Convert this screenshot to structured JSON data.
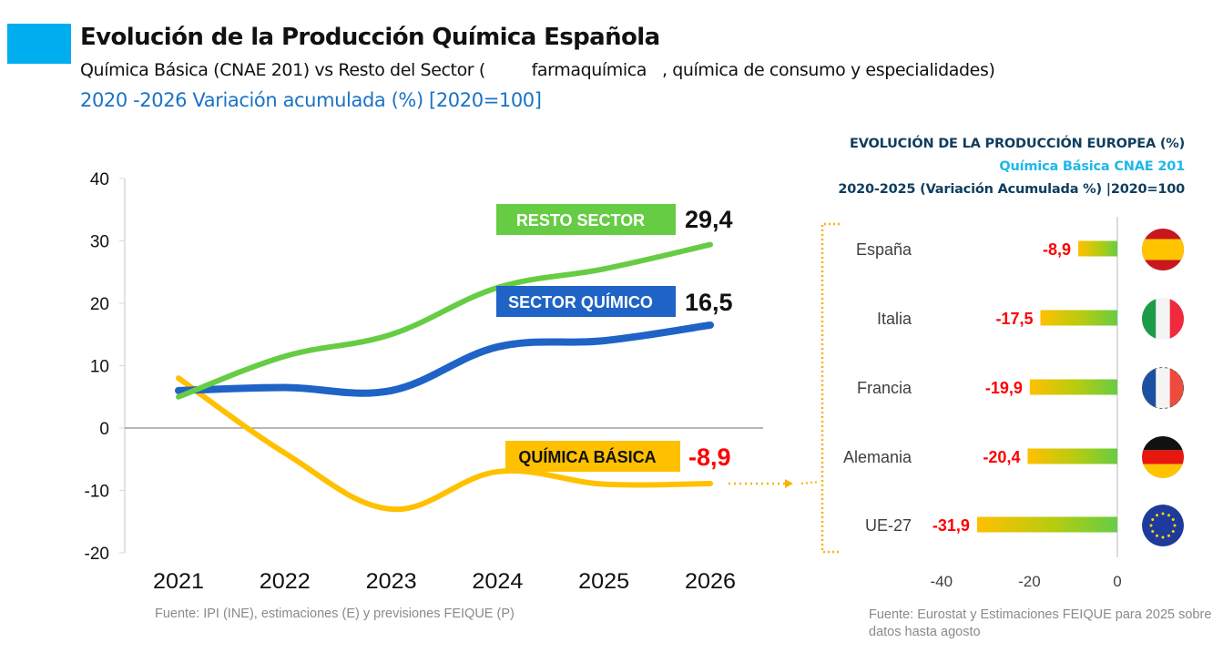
{
  "header": {
    "title": "Evolución de la Producción Química Española",
    "subtitle": "Química Básica (CNAE 201) vs Resto del Sector (         farmaquímica   , química de consumo y especialidades)",
    "subtitle2": "2020 -2026 Variación acumulada (%) [2020=100]",
    "accent_color": "#00ADEF"
  },
  "chart_data": [
    {
      "type": "line",
      "title": "Evolución de la Producción Química Española",
      "subtitle": "2020 -2026 Variación acumulada (%) [2020=100]",
      "xlabel": "",
      "ylabel": "",
      "categories": [
        "2021",
        "2022",
        "2023",
        "2024",
        "2025",
        "2026"
      ],
      "yticks": [
        "40",
        "30",
        "20",
        "10",
        "0",
        "-10",
        "-20"
      ],
      "ytick_values": [
        40,
        30,
        20,
        10,
        0,
        -10,
        -20
      ],
      "ylim": [
        -20,
        40
      ],
      "grid": false,
      "series": [
        {
          "name": "RESTO SECTOR",
          "label": "RESTO SECTOR",
          "end_label": "29,4",
          "color": "#66CC44",
          "label_text_color": "#ffffff",
          "end_label_color": "#111111",
          "values": [
            5,
            11.5,
            15,
            22.5,
            25.5,
            29.4
          ]
        },
        {
          "name": "SECTOR QUÍMICO",
          "label": "SECTOR QUÍMICO",
          "end_label": "16,5",
          "color": "#1F63C6",
          "label_text_color": "#ffffff",
          "end_label_color": "#111111",
          "values": [
            6,
            6.5,
            6,
            13,
            14,
            16.5
          ]
        },
        {
          "name": "QUÍMICA BÁSICA",
          "label": "QUÍMICA BÁSICA",
          "end_label": "-8,9",
          "color": "#FFC000",
          "label_text_color": "#111111",
          "end_label_color": "#FF0000",
          "values": [
            8,
            -4,
            -13,
            -7,
            -9,
            -8.9
          ]
        }
      ],
      "source": "Fuente: IPI (INE), estimaciones (E) y previsiones FEIQUE (P)"
    },
    {
      "type": "bar",
      "orientation": "horizontal",
      "title": "EVOLUCIÓN DE LA PRODUCCIÓN EUROPEA (%)",
      "subtitle": "Química Básica CNAE 201",
      "subtitle2": "2020-2025 (Variación Acumulada %) |2020=100",
      "categories": [
        "España",
        "Italia",
        "Francia",
        "Alemania",
        "UE-27"
      ],
      "values": [
        -8.9,
        -17.5,
        -19.9,
        -20.4,
        -31.9
      ],
      "value_labels": [
        "-8,9",
        "-17,5",
        "-19,9",
        "-20,4",
        "-31,9"
      ],
      "flags": [
        "spain-flag",
        "italy-flag",
        "france-flag",
        "germany-flag",
        "eu-flag"
      ],
      "xticks": [
        "-40",
        "-20",
        "0"
      ],
      "xtick_values": [
        -40,
        -20,
        0
      ],
      "xlim": [
        -40,
        0
      ],
      "bar_gradient": [
        "#FFC000",
        "#66CC44"
      ],
      "value_label_color": "#FF0000",
      "source": "Fuente: Eurostat y Estimaciones FEIQUE para 2025 sobre datos hasta agosto"
    }
  ],
  "europe": {
    "heading1": "EVOLUCIÓN DE LA PRODUCCIÓN EUROPEA (%)",
    "heading2": "Química Básica CNAE 201",
    "heading3": "2020-2025 (Variación Acumulada %) |2020=100"
  },
  "sources": {
    "left": "Fuente: IPI (INE), estimaciones (E) y previsiones FEIQUE (P)",
    "right": "Fuente: Eurostat y Estimaciones FEIQUE para 2025 sobre datos hasta agosto"
  }
}
